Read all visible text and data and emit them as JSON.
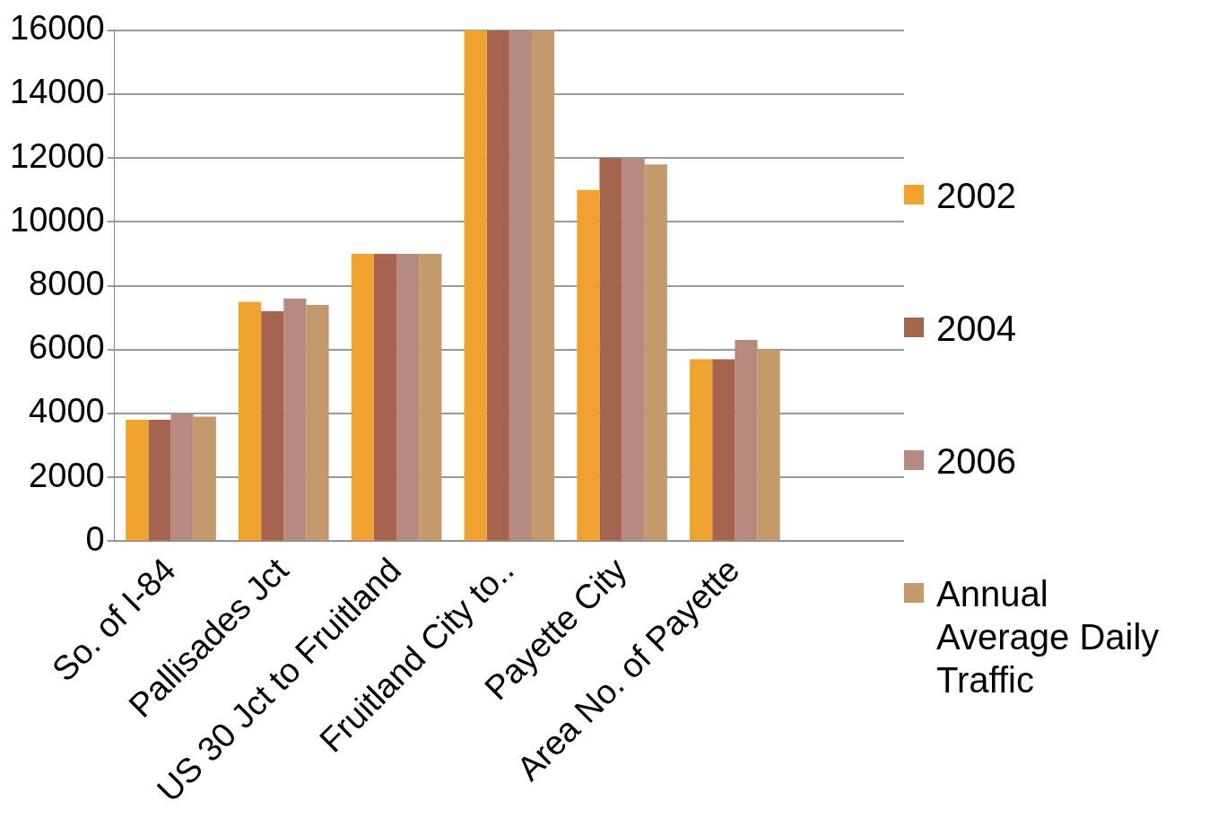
{
  "chart_data": {
    "type": "bar",
    "categories": [
      "So. of I-84",
      "Pallisades Jct",
      "US 30 Jct to Fruitland",
      "Fruitland City to..",
      "Payette City",
      "Area No. of Payette",
      null
    ],
    "series": [
      {
        "name": "2002",
        "color": "#f0a22e",
        "values": [
          3800,
          7500,
          9000,
          16000,
          11000,
          5700,
          null
        ]
      },
      {
        "name": "2004",
        "color": "#a5644e",
        "values": [
          3800,
          7200,
          9000,
          16000,
          12000,
          5700,
          null
        ]
      },
      {
        "name": "2006",
        "color": "#b58b80",
        "values": [
          4000,
          7600,
          9000,
          16000,
          12000,
          6300,
          null
        ]
      },
      {
        "name": "Annual Average Daily Traffic",
        "color": "#c49a6c",
        "values": [
          3900,
          7400,
          9000,
          16000,
          11800,
          6000,
          null
        ]
      }
    ],
    "ylim": [
      0,
      16000
    ],
    "yticks": [
      0,
      2000,
      4000,
      6000,
      8000,
      10000,
      12000,
      14000,
      16000
    ],
    "grid": "y",
    "legend": "right"
  }
}
